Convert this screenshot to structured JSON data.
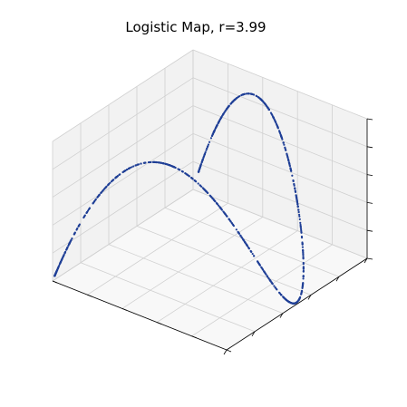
{
  "figure": {
    "title": "Logistic Map, r=3.99"
  },
  "chart_data": {
    "type": "scatter",
    "projection": "3d",
    "title": "Logistic Map, r=3.99",
    "xlabel": "",
    "ylabel": "",
    "zlabel": "",
    "tick_labels_shown": false,
    "grid": true,
    "marker_color": "#1f3f96",
    "description_of_series": "points (x_n, x_{n+1}, x_{n+2}) of the logistic map x_{n+1} = r x_n (1 - x_n)",
    "r": 3.99,
    "xlim": [
      0,
      1
    ],
    "ylim": [
      0,
      1
    ],
    "zlim": [
      0,
      1
    ],
    "n_points": 900
  }
}
